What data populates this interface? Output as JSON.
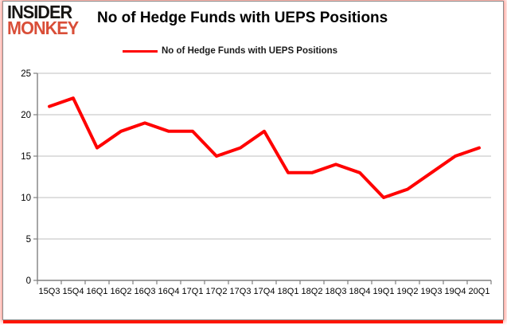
{
  "brand": {
    "line1": "INSIDER",
    "line2": "MONKEY"
  },
  "title": "No of Hedge Funds with UEPS Positions",
  "legend": {
    "label": "No of Hedge Funds with UEPS Positions",
    "color": "#ff0000"
  },
  "colors": {
    "series_red": "#ff0000",
    "logo_red": "#d94e38",
    "grid": "#bfbfbf",
    "axis": "#808080",
    "text": "#000000",
    "card_border": "#8a8a8a",
    "outer_glow_red": "#ff1505"
  },
  "chart_data": {
    "type": "line",
    "title": "No of Hedge Funds with UEPS Positions",
    "xlabel": "",
    "ylabel": "",
    "categories": [
      "15Q3",
      "15Q4",
      "16Q1",
      "16Q2",
      "16Q3",
      "16Q4",
      "17Q1",
      "17Q2",
      "17Q3",
      "17Q4",
      "18Q1",
      "18Q2",
      "18Q3",
      "18Q4",
      "19Q1",
      "19Q2",
      "19Q3",
      "19Q4",
      "20Q1"
    ],
    "series": [
      {
        "name": "No of Hedge Funds with UEPS Positions",
        "color": "#ff0000",
        "values": [
          21,
          22,
          16,
          18,
          19,
          18,
          18,
          15,
          16,
          18,
          13,
          13,
          14,
          13,
          10,
          11,
          13,
          15,
          16
        ]
      }
    ],
    "ylim": [
      0,
      25
    ],
    "yticks": [
      0,
      5,
      10,
      15,
      20,
      25
    ],
    "grid": true,
    "legend_position": "top"
  }
}
